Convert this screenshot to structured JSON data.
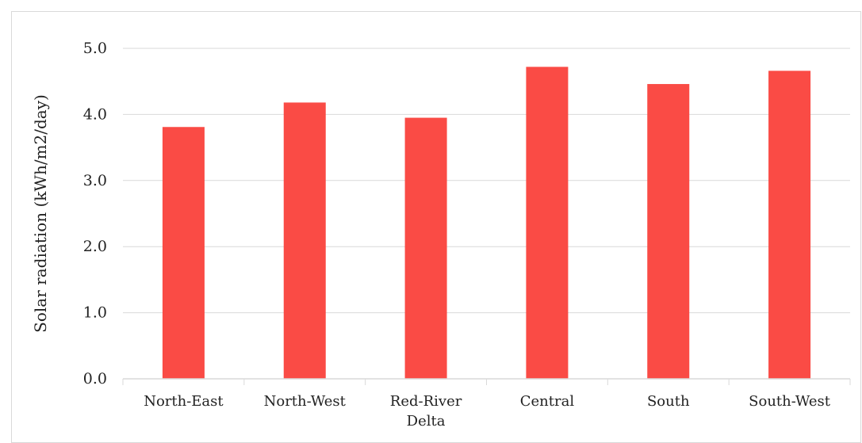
{
  "chart_data": {
    "type": "bar",
    "categories": [
      [
        "North-East"
      ],
      [
        "North-West"
      ],
      [
        "Red-River",
        "Delta"
      ],
      [
        "Central"
      ],
      [
        "South"
      ],
      [
        "South-West"
      ]
    ],
    "values": [
      3.81,
      4.18,
      3.95,
      4.72,
      4.46,
      4.66
    ],
    "ylabel": "Solar radiation (kWh/m2/day)",
    "xlabel": "",
    "ylim": [
      0,
      5
    ],
    "yticks": [
      "0.0",
      "1.0",
      "2.0",
      "3.0",
      "4.0",
      "5.0"
    ],
    "grid": true,
    "legend": "none",
    "bar_color": "#fa4b45",
    "grid_color": "#d9d9d9"
  }
}
